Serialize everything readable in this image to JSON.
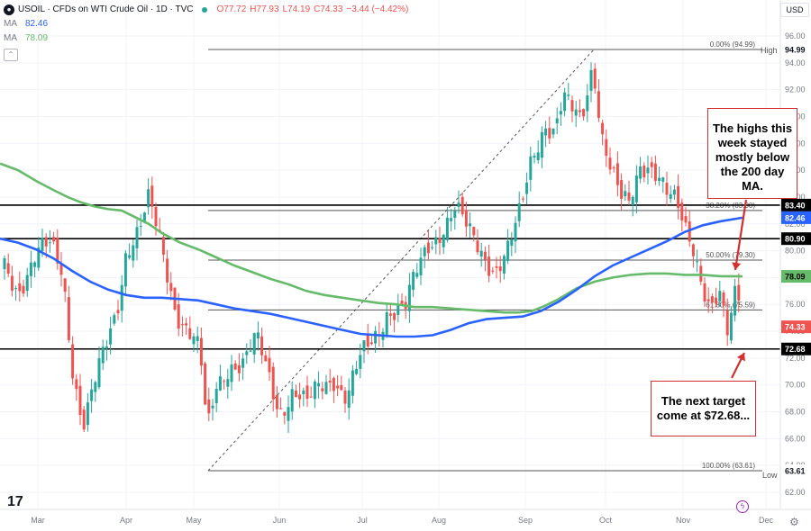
{
  "legend": {
    "symbol": "USOIL · CFDs on WTI Crude Oil · 1D · TVC",
    "open": "O77.72",
    "high": "H77.93",
    "low": "L74.19",
    "close": "C74.33",
    "change": "−3.44 (−4.42%)",
    "ma1_label": "MA",
    "ma1_value": "82.46",
    "ma2_label": "MA",
    "ma2_value": "78.09"
  },
  "currency": "USD",
  "colors": {
    "up": "#26a69a",
    "down": "#ef5350",
    "ma_blue": "#2962ff",
    "ma_green": "#66bb6a",
    "annotation": "#d32f2f"
  },
  "icons": [
    "tradingview-logo-icon",
    "gear-icon",
    "lightning-icon",
    "collapse-icon"
  ],
  "annotations": {
    "top": "The highs this week stayed mostly below the 200 day MA.",
    "bottom": "The next target come at $72.68..."
  },
  "chart_data": {
    "type": "candlestick",
    "x_ticks": [
      "Mar",
      "Apr",
      "May",
      "Jun",
      "Jul",
      "Aug",
      "Sep",
      "Oct",
      "Nov",
      "Dec"
    ],
    "y_ticks": [
      "96.00",
      "94.00",
      "92.00",
      "90.00",
      "88.00",
      "86.00",
      "84.00",
      "82.00",
      "80.00",
      "78.00",
      "76.00",
      "74.00",
      "72.00",
      "70.00",
      "68.00",
      "66.00",
      "64.00",
      "62.00"
    ],
    "ylim": [
      61.4,
      97.6
    ],
    "price_tags": [
      {
        "text": "83.40",
        "value": 83.4,
        "style": "black"
      },
      {
        "text": "82.46",
        "value": 82.46,
        "style": "blue"
      },
      {
        "text": "80.90",
        "value": 80.9,
        "style": "black"
      },
      {
        "text": "78.09",
        "value": 78.09,
        "style": "green"
      },
      {
        "text": "74.33",
        "value": 74.33,
        "style": "red"
      },
      {
        "text": "72.68",
        "value": 72.68,
        "style": "black"
      },
      {
        "text": "94.99",
        "value": 94.99,
        "style": "plain"
      },
      {
        "text": "63.61",
        "value": 63.61,
        "style": "plain"
      }
    ],
    "horizontal_lines": [
      83.4,
      80.9,
      72.68
    ],
    "fib_levels": [
      {
        "label": "0.00% (94.99)",
        "value": 94.99
      },
      {
        "label": "38.20% (83.00)",
        "value": 83.0
      },
      {
        "label": "50.00% (79.30)",
        "value": 79.3
      },
      {
        "label": "61.80% (75.59)",
        "value": 75.59
      },
      {
        "label": "100.00% (63.61)",
        "value": 63.61
      }
    ],
    "high_label": "High",
    "low_label": "Low",
    "ma_200": [
      [
        0,
        86.5
      ],
      [
        20,
        86.0
      ],
      [
        40,
        85.2
      ],
      [
        60,
        84.5
      ],
      [
        75,
        84.0
      ],
      [
        90,
        83.6
      ],
      [
        105,
        83.3
      ],
      [
        120,
        83.1
      ],
      [
        135,
        83.0
      ],
      [
        150,
        82.5
      ],
      [
        165,
        82.0
      ],
      [
        180,
        81.3
      ],
      [
        200,
        80.6
      ],
      [
        220,
        80.1
      ],
      [
        240,
        79.5
      ],
      [
        260,
        78.9
      ],
      [
        280,
        78.4
      ],
      [
        300,
        77.9
      ],
      [
        320,
        77.5
      ],
      [
        340,
        77.0
      ],
      [
        360,
        76.7
      ],
      [
        380,
        76.5
      ],
      [
        400,
        76.3
      ],
      [
        420,
        76.1
      ],
      [
        440,
        76.0
      ],
      [
        460,
        75.8
      ],
      [
        480,
        75.8
      ],
      [
        500,
        75.7
      ],
      [
        520,
        75.6
      ],
      [
        540,
        75.5
      ],
      [
        560,
        75.4
      ],
      [
        575,
        75.4
      ],
      [
        590,
        75.5
      ],
      [
        605,
        75.9
      ],
      [
        620,
        76.4
      ],
      [
        640,
        77.2
      ],
      [
        660,
        77.7
      ],
      [
        680,
        78.0
      ],
      [
        700,
        78.2
      ],
      [
        720,
        78.3
      ],
      [
        740,
        78.3
      ],
      [
        760,
        78.2
      ],
      [
        780,
        78.2
      ],
      [
        800,
        78.1
      ],
      [
        812,
        78.1
      ],
      [
        824,
        78.09
      ]
    ],
    "ma_50": [
      [
        0,
        80.9
      ],
      [
        20,
        80.6
      ],
      [
        40,
        80.1
      ],
      [
        60,
        79.4
      ],
      [
        80,
        78.5
      ],
      [
        100,
        77.7
      ],
      [
        120,
        77.1
      ],
      [
        140,
        76.7
      ],
      [
        160,
        76.5
      ],
      [
        180,
        76.5
      ],
      [
        200,
        76.4
      ],
      [
        220,
        76.3
      ],
      [
        240,
        76.0
      ],
      [
        260,
        75.7
      ],
      [
        280,
        75.5
      ],
      [
        300,
        75.3
      ],
      [
        320,
        75.0
      ],
      [
        340,
        74.7
      ],
      [
        360,
        74.4
      ],
      [
        380,
        74.1
      ],
      [
        400,
        73.8
      ],
      [
        420,
        73.7
      ],
      [
        440,
        73.6
      ],
      [
        460,
        73.6
      ],
      [
        480,
        73.7
      ],
      [
        500,
        74.1
      ],
      [
        520,
        74.6
      ],
      [
        540,
        74.9
      ],
      [
        560,
        75.0
      ],
      [
        580,
        75.1
      ],
      [
        600,
        75.5
      ],
      [
        620,
        76.2
      ],
      [
        640,
        77.1
      ],
      [
        660,
        78.1
      ],
      [
        680,
        78.9
      ],
      [
        700,
        79.5
      ],
      [
        720,
        80.1
      ],
      [
        740,
        80.7
      ],
      [
        760,
        81.4
      ],
      [
        780,
        81.9
      ],
      [
        800,
        82.2
      ],
      [
        824,
        82.46
      ]
    ],
    "candles_ohlc_desc": "stylized daily candles approximating WTI path from Feb to mid-Nov",
    "price_path": [
      [
        3,
        79.0
      ],
      [
        20,
        77.5
      ],
      [
        40,
        79.5
      ],
      [
        57,
        80.0
      ],
      [
        70,
        78.5
      ],
      [
        80,
        72.0
      ],
      [
        92,
        67.0
      ],
      [
        100,
        68.5
      ],
      [
        115,
        72.0
      ],
      [
        130,
        76.0
      ],
      [
        140,
        80.5
      ],
      [
        155,
        81.5
      ],
      [
        165,
        83.3
      ],
      [
        180,
        80.0
      ],
      [
        195,
        76.0
      ],
      [
        210,
        74.0
      ],
      [
        222,
        72.0
      ],
      [
        230,
        66.0
      ],
      [
        240,
        70.0
      ],
      [
        255,
        72.0
      ],
      [
        270,
        71.5
      ],
      [
        285,
        73.0
      ],
      [
        300,
        70.5
      ],
      [
        310,
        68.5
      ],
      [
        325,
        69.5
      ],
      [
        340,
        68.0
      ],
      [
        355,
        70.0
      ],
      [
        370,
        71.0
      ],
      [
        385,
        69.0
      ],
      [
        400,
        71.5
      ],
      [
        415,
        73.5
      ],
      [
        430,
        76.0
      ],
      [
        450,
        75.5
      ],
      [
        460,
        77.5
      ],
      [
        475,
        80.5
      ],
      [
        490,
        82.0
      ],
      [
        505,
        83.0
      ],
      [
        520,
        81.0
      ],
      [
        535,
        80.0
      ],
      [
        550,
        79.0
      ],
      [
        565,
        80.0
      ],
      [
        578,
        82.5
      ],
      [
        590,
        87.0
      ],
      [
        605,
        90.0
      ],
      [
        615,
        89.0
      ],
      [
        625,
        91.0
      ],
      [
        635,
        90.0
      ],
      [
        645,
        89.5
      ],
      [
        658,
        94.5
      ],
      [
        668,
        89.0
      ],
      [
        678,
        86.0
      ],
      [
        688,
        83.5
      ],
      [
        698,
        83.0
      ],
      [
        710,
        86.5
      ],
      [
        720,
        87.0
      ],
      [
        730,
        86.0
      ],
      [
        740,
        84.0
      ],
      [
        750,
        83.0
      ],
      [
        760,
        81.5
      ],
      [
        770,
        80.5
      ],
      [
        778,
        78.5
      ],
      [
        788,
        76.0
      ],
      [
        798,
        76.5
      ],
      [
        808,
        73.0
      ],
      [
        818,
        77.5
      ],
      [
        824,
        74.33
      ]
    ]
  }
}
